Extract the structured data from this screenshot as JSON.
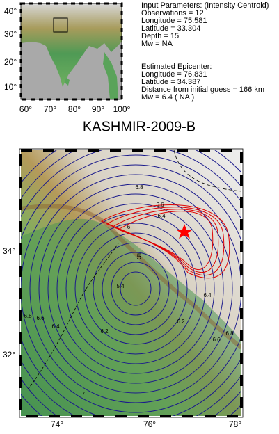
{
  "inset_map": {
    "lat_labels": [
      "40°",
      "30°",
      "20°",
      "10°"
    ],
    "lon_labels": [
      "60°",
      "70°",
      "80°",
      "90°",
      "100°"
    ]
  },
  "info": {
    "lines": [
      "Input Parameters: (Intensity Centroid)",
      "Observations = 12",
      "Longitude = 75.581",
      "Latitude = 33.304",
      "Depth = 15",
      "Mw = NA",
      "Estimated Epicenter:",
      "Longitude = 76.831",
      "Latitude = 34.387",
      "Distance from initial guess = 166 km",
      "Mw = 6.4 ( NA )"
    ]
  },
  "title": "KASHMIR-2009-B",
  "main_map": {
    "lat_labels": [
      "34°",
      "32°"
    ],
    "lon_labels": [
      "74°",
      "76°",
      "78°"
    ],
    "contour_labels": [
      "6.8",
      "6.6",
      "6.4",
      "6",
      "5",
      "5.4",
      "6.2",
      "6.4",
      "6.6",
      "6.8",
      "7",
      "6.4",
      "6.2",
      "6.6",
      "6.8"
    ]
  }
}
